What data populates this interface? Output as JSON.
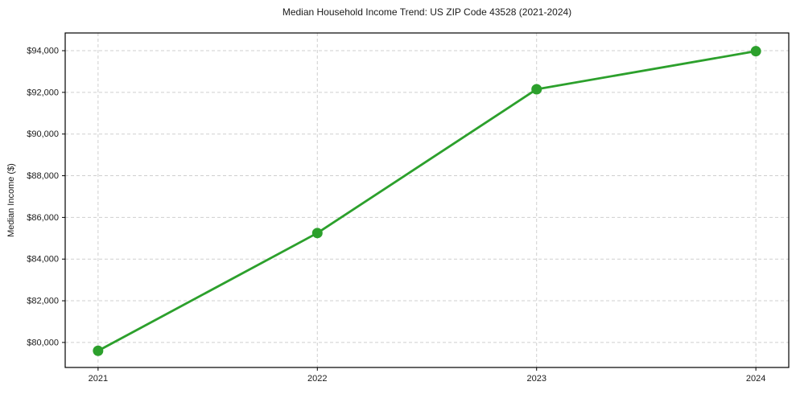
{
  "chart_data": {
    "type": "line",
    "title": "Median Household Income Trend: US ZIP Code 43528 (2021-2024)",
    "xlabel": "",
    "ylabel": "Median Income ($)",
    "x": [
      2021,
      2022,
      2023,
      2024
    ],
    "values": [
      79600,
      85250,
      92150,
      93975
    ],
    "series_name": "Median Household Income",
    "xlim": [
      2020.85,
      2024.15
    ],
    "ylim": [
      78800,
      94850
    ],
    "xticks": [
      {
        "value": 2021,
        "label": "2021"
      },
      {
        "value": 2022,
        "label": "2022"
      },
      {
        "value": 2023,
        "label": "2023"
      },
      {
        "value": 2024,
        "label": "2024"
      }
    ],
    "yticks": [
      {
        "value": 80000,
        "label": "$80,000"
      },
      {
        "value": 82000,
        "label": "$82,000"
      },
      {
        "value": 84000,
        "label": "$84,000"
      },
      {
        "value": 86000,
        "label": "$86,000"
      },
      {
        "value": 88000,
        "label": "$88,000"
      },
      {
        "value": 90000,
        "label": "$90,000"
      },
      {
        "value": 92000,
        "label": "$92,000"
      },
      {
        "value": 94000,
        "label": "$94,000"
      }
    ],
    "grid": true,
    "grid_style": "dashed",
    "legend_position": "none",
    "marker": "circle",
    "marker_size": 6.5,
    "line_width": 2.8,
    "line_color": "#2ca02c",
    "grid_color": "#cfcfcf",
    "axis_color": "#000000",
    "text_color": "#1a1a1a",
    "background_color": "#ffffff"
  }
}
